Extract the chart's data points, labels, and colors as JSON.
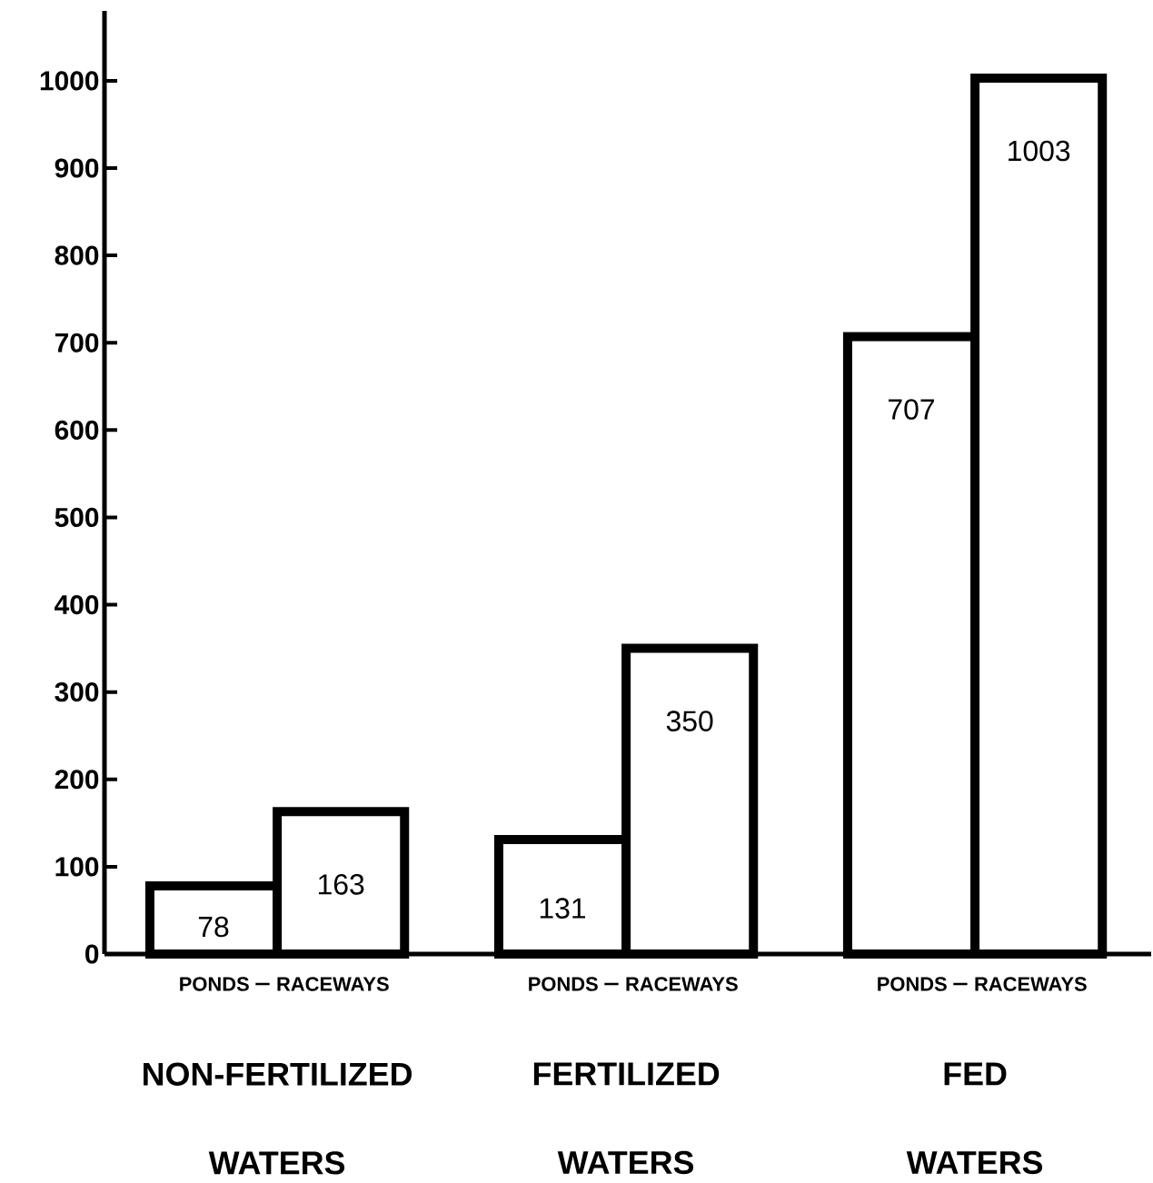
{
  "chart_data": {
    "type": "bar",
    "categories": [
      "NON-FERTILIZED WATERS",
      "FERTILIZED WATERS",
      "FED WATERS"
    ],
    "series": [
      {
        "name": "PONDS",
        "color": "#000000",
        "values": [
          78,
          131,
          707
        ]
      },
      {
        "name": "RACEWAYS",
        "color": "#000000",
        "values": [
          163,
          350,
          1003
        ]
      }
    ],
    "ylim": [
      0,
      1080
    ],
    "yticks": [
      0,
      100,
      200,
      300,
      400,
      500,
      600,
      700,
      800,
      900,
      1000
    ],
    "grid": false,
    "legend": "bottom",
    "data_labels": true
  }
}
